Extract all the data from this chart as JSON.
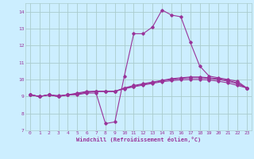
{
  "xlabel": "Windchill (Refroidissement éolien,°C)",
  "bg_color": "#cceeff",
  "grid_color": "#aacccc",
  "line_color": "#993399",
  "xlim": [
    -0.5,
    23.5
  ],
  "ylim": [
    7,
    14.5
  ],
  "yticks": [
    7,
    8,
    9,
    10,
    11,
    12,
    13,
    14
  ],
  "xticks": [
    0,
    1,
    2,
    3,
    4,
    5,
    6,
    7,
    8,
    9,
    10,
    11,
    12,
    13,
    14,
    15,
    16,
    17,
    18,
    19,
    20,
    21,
    22,
    23
  ],
  "lines": [
    {
      "x": [
        0,
        1,
        2,
        3,
        4,
        5,
        6,
        7,
        8,
        9,
        10,
        11,
        12,
        13,
        14,
        15,
        16,
        17,
        18,
        19,
        20,
        21,
        22,
        23
      ],
      "y": [
        9.1,
        9.0,
        9.1,
        9.0,
        9.1,
        9.1,
        9.2,
        9.2,
        7.4,
        7.5,
        10.2,
        12.7,
        12.7,
        13.1,
        14.1,
        13.8,
        13.7,
        12.2,
        10.8,
        10.2,
        10.1,
        10.0,
        9.9,
        9.5
      ]
    },
    {
      "x": [
        0,
        1,
        2,
        3,
        4,
        5,
        6,
        7,
        8,
        9,
        10,
        11,
        12,
        13,
        14,
        15,
        16,
        17,
        18,
        19,
        20,
        21,
        22,
        23
      ],
      "y": [
        9.1,
        9.0,
        9.1,
        9.0,
        9.1,
        9.2,
        9.3,
        9.3,
        9.3,
        9.3,
        9.5,
        9.65,
        9.75,
        9.85,
        9.95,
        10.05,
        10.1,
        10.15,
        10.15,
        10.1,
        10.05,
        9.95,
        9.8,
        9.5
      ]
    },
    {
      "x": [
        0,
        1,
        2,
        3,
        4,
        5,
        6,
        7,
        8,
        9,
        10,
        11,
        12,
        13,
        14,
        15,
        16,
        17,
        18,
        19,
        20,
        21,
        22,
        23
      ],
      "y": [
        9.1,
        9.0,
        9.1,
        9.0,
        9.1,
        9.15,
        9.25,
        9.3,
        9.3,
        9.3,
        9.48,
        9.6,
        9.72,
        9.82,
        9.92,
        10.0,
        10.06,
        10.1,
        10.1,
        10.06,
        10.0,
        9.9,
        9.75,
        9.5
      ]
    },
    {
      "x": [
        0,
        1,
        2,
        3,
        4,
        5,
        6,
        7,
        8,
        9,
        10,
        11,
        12,
        13,
        14,
        15,
        16,
        17,
        18,
        19,
        20,
        21,
        22,
        23
      ],
      "y": [
        9.1,
        9.0,
        9.1,
        9.05,
        9.1,
        9.15,
        9.25,
        9.3,
        9.3,
        9.3,
        9.45,
        9.57,
        9.67,
        9.77,
        9.87,
        9.93,
        9.98,
        10.0,
        10.0,
        9.97,
        9.9,
        9.8,
        9.65,
        9.5
      ]
    }
  ]
}
